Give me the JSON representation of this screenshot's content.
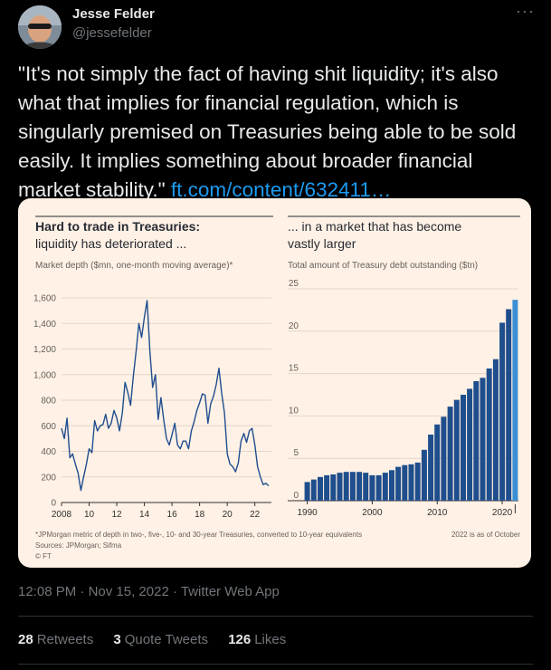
{
  "author": {
    "name": "Jesse Felder",
    "handle": "@jessefelder"
  },
  "menu_icon": "more-dots-icon",
  "tweet": {
    "text": "\"It's not simply the fact of having shit liquidity;  it's also what that implies for financial regulation, which is singularly premised on Treasuries being able to be sold easily. It implies something about broader financial market stability.\"",
    "link": "ft.com/content/632411…"
  },
  "meta": {
    "time": "12:08 PM",
    "date": "Nov 15, 2022",
    "sep": "·",
    "source": "Twitter Web App"
  },
  "stats": {
    "retweets": {
      "count": "28",
      "label": "Retweets"
    },
    "quotes": {
      "count": "3",
      "label": "Quote Tweets"
    },
    "likes": {
      "count": "126",
      "label": "Likes"
    }
  },
  "colors": {
    "ft_background": "#fff1e5",
    "line": "#1f4d8f",
    "bar": "#1f4e8c",
    "bar_highlight": "#3b8fd4",
    "link": "#1d9bf0"
  },
  "figure": {
    "footnote": "*JPMorgan metric of depth in two-, five-, 10- and 30-year Treasuries, converted to 10-year equivalents",
    "sources": "Sources: JPMorgan; Sifma",
    "credit": "© FT",
    "note_right": "2022 is as of October"
  },
  "chart_data": [
    {
      "type": "line",
      "title": "Hard to trade in Treasuries:",
      "subtitle": "liquidity has deteriorated ...",
      "ylabel": "Market depth ($mn, one-month moving average)*",
      "x_tick_labels": [
        "2008",
        "10",
        "12",
        "14",
        "16",
        "18",
        "20",
        "22"
      ],
      "x_ticks": [
        2008,
        2010,
        2012,
        2014,
        2016,
        2018,
        2020,
        2022
      ],
      "y_tick_labels": [
        "0",
        "200",
        "400",
        "600",
        "800",
        "1,000",
        "1,200",
        "1,400",
        "1,600"
      ],
      "xlim": [
        2008,
        2023.2
      ],
      "ylim": [
        0,
        1650
      ],
      "series": [
        {
          "x": [
            2008.0,
            2008.2,
            2008.4,
            2008.6,
            2008.8,
            2009.0,
            2009.2,
            2009.4,
            2009.6,
            2009.8,
            2010.0,
            2010.2,
            2010.4,
            2010.6,
            2010.8,
            2011.0,
            2011.2,
            2011.4,
            2011.6,
            2011.8,
            2012.0,
            2012.2,
            2012.4,
            2012.6,
            2012.8,
            2013.0,
            2013.2,
            2013.4,
            2013.6,
            2013.8,
            2014.0,
            2014.2,
            2014.4,
            2014.6,
            2014.8,
            2015.0,
            2015.2,
            2015.4,
            2015.6,
            2015.8,
            2016.0,
            2016.2,
            2016.4,
            2016.6,
            2016.8,
            2017.0,
            2017.2,
            2017.4,
            2017.6,
            2017.8,
            2018.0,
            2018.2,
            2018.4,
            2018.6,
            2018.8,
            2019.0,
            2019.2,
            2019.4,
            2019.6,
            2019.8,
            2020.0,
            2020.2,
            2020.4,
            2020.6,
            2020.8,
            2021.0,
            2021.2,
            2021.4,
            2021.6,
            2021.8,
            2022.0,
            2022.2,
            2022.4,
            2022.6,
            2022.8,
            2023.0
          ],
          "values": [
            580,
            500,
            660,
            350,
            380,
            300,
            230,
            95,
            200,
            300,
            420,
            390,
            640,
            560,
            600,
            610,
            690,
            580,
            620,
            720,
            660,
            560,
            700,
            940,
            860,
            760,
            990,
            1180,
            1400,
            1290,
            1450,
            1580,
            1180,
            900,
            1000,
            650,
            820,
            650,
            500,
            450,
            530,
            620,
            450,
            420,
            480,
            480,
            420,
            560,
            630,
            720,
            780,
            850,
            840,
            620,
            770,
            830,
            920,
            1050,
            850,
            700,
            380,
            300,
            280,
            240,
            310,
            480,
            540,
            470,
            560,
            580,
            450,
            280,
            200,
            140,
            150,
            130
          ]
        }
      ]
    },
    {
      "type": "bar",
      "title": "... in a market that has become",
      "subtitle": "vastly larger",
      "ylabel": "Total amount of Treasury debt outstanding ($tn)",
      "categories": [
        1990,
        1991,
        1992,
        1993,
        1994,
        1995,
        1996,
        1997,
        1998,
        1999,
        2000,
        2001,
        2002,
        2003,
        2004,
        2005,
        2006,
        2007,
        2008,
        2009,
        2010,
        2011,
        2012,
        2013,
        2014,
        2015,
        2016,
        2017,
        2018,
        2019,
        2020,
        2021,
        2022
      ],
      "values": [
        2.2,
        2.5,
        2.8,
        3.0,
        3.1,
        3.3,
        3.4,
        3.4,
        3.4,
        3.3,
        3.0,
        3.0,
        3.3,
        3.6,
        4.0,
        4.2,
        4.3,
        4.5,
        6.0,
        7.8,
        9.0,
        9.9,
        11.1,
        11.9,
        12.5,
        13.2,
        14.1,
        14.5,
        15.6,
        16.7,
        21.0,
        22.6,
        23.7
      ],
      "highlight_last": true,
      "x_tick_labels": [
        "1990",
        "2000",
        "2010",
        "2020"
      ],
      "x_ticks": [
        1990,
        2000,
        2010,
        2020
      ],
      "y_tick_labels": [
        "0",
        "5",
        "10",
        "15",
        "20",
        "25"
      ],
      "ylim": [
        0,
        25
      ]
    }
  ]
}
